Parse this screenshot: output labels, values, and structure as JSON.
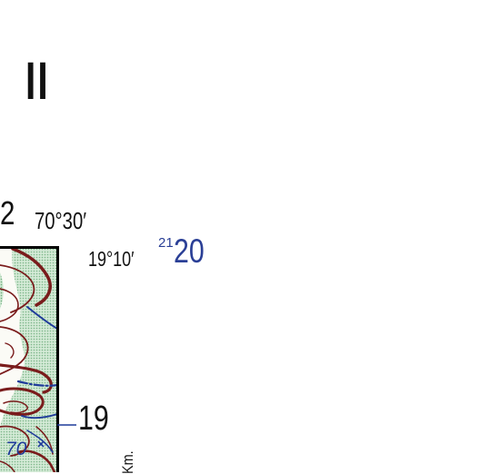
{
  "sheet_number": "II",
  "grid_top": "2",
  "longitude_label": "70°30′",
  "latitude_label": "19°10′",
  "grid_superscript": "21",
  "grid_right": "20",
  "grid_right_lower": "19",
  "spot_height": "70",
  "unit_label": "Km.",
  "colors": {
    "contour": "#7a1c1c",
    "water": "#1f3b9a",
    "vegetation": "#b9dcc0",
    "neatline": "#000000",
    "grid_blue": "#2a3f96"
  }
}
